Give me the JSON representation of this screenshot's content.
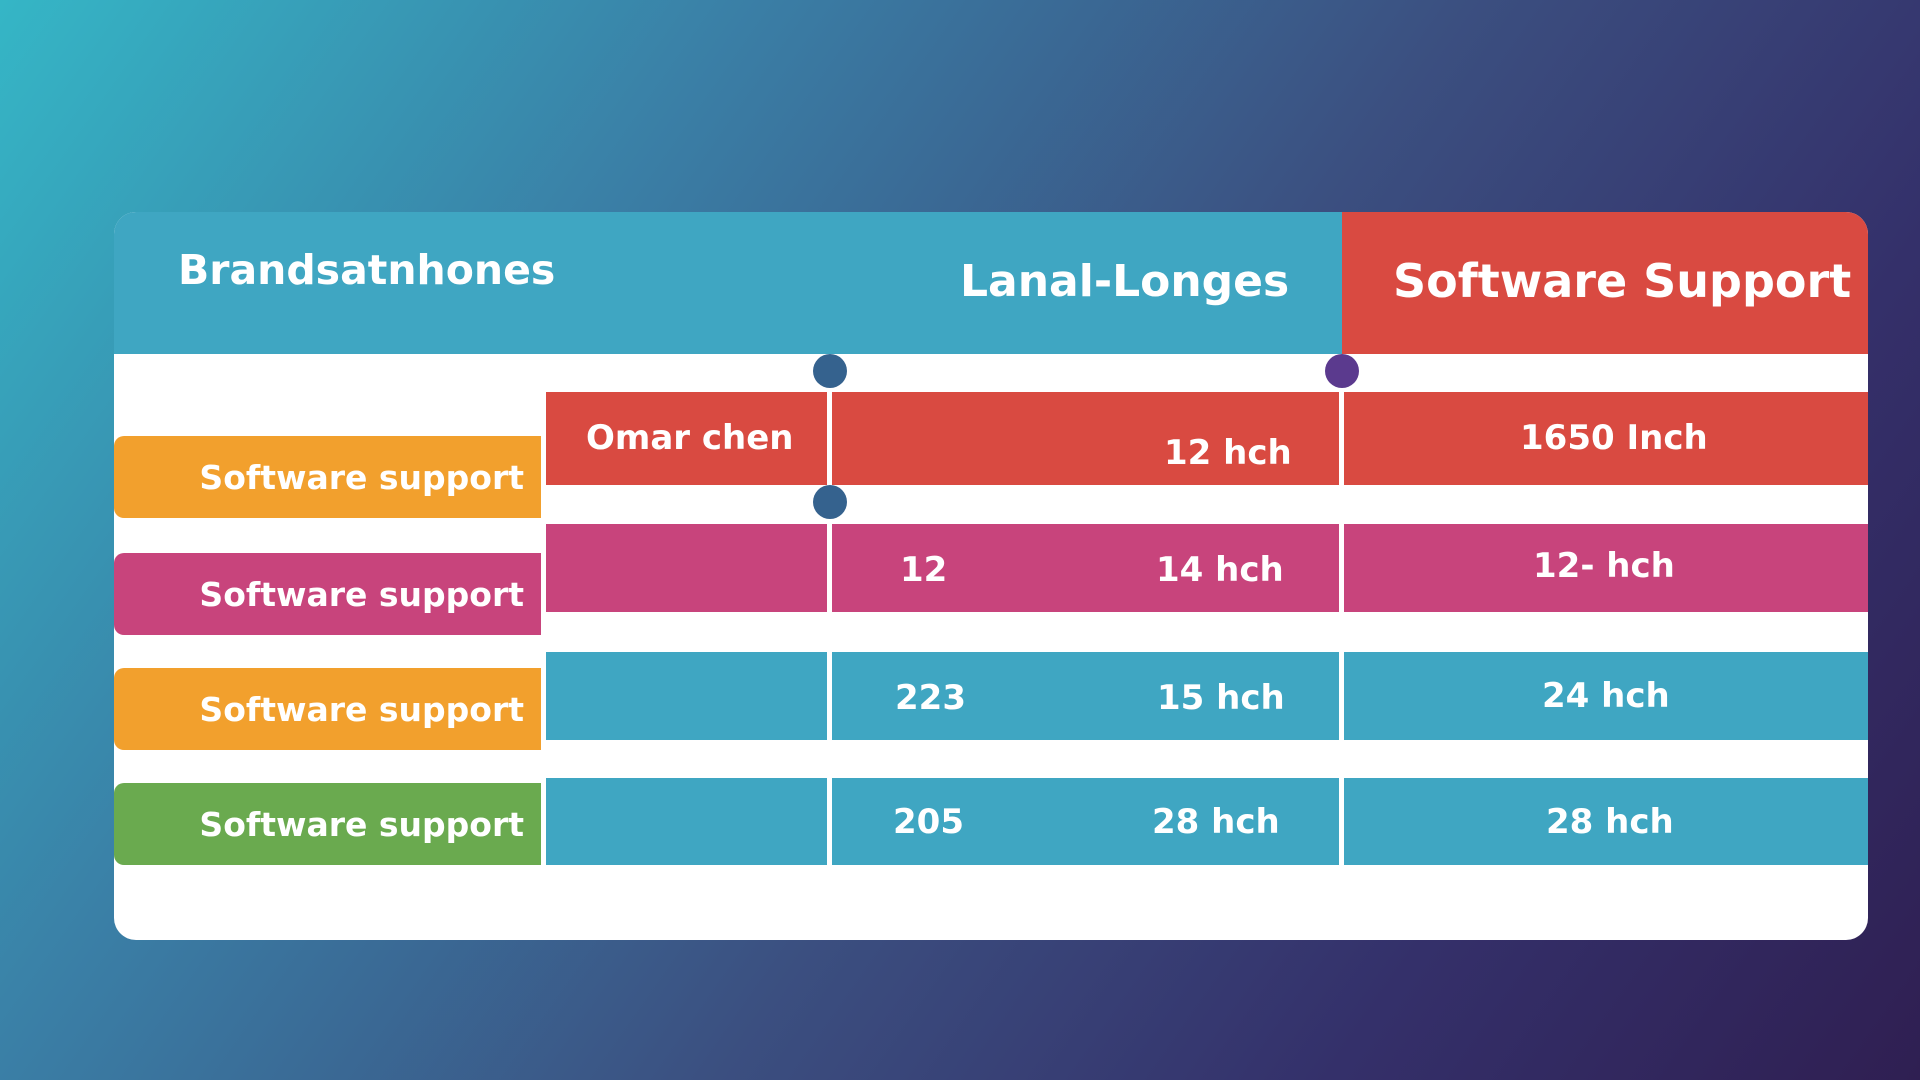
{
  "header": {
    "col1": "Brandsatnhones",
    "col2": "Lanal-Longes",
    "col3": "Software Support"
  },
  "row_labels": [
    "Software support",
    "Software support",
    "Software support",
    "Software support"
  ],
  "rows": [
    {
      "name": "Omar chen",
      "a": "",
      "b": "12 hch",
      "c": "1650 Inch"
    },
    {
      "name": "",
      "a": "12",
      "b": "14 hch",
      "c": "12- hch"
    },
    {
      "name": "",
      "a": "223",
      "b": "15 hch",
      "c": "24 hch"
    },
    {
      "name": "",
      "a": "205",
      "b": "28 hch",
      "c": "28 hch"
    }
  ],
  "colors": {
    "header_blue": "#3fa6c2",
    "header_red": "#d94a41",
    "row_red": "#d94a41",
    "row_pink": "#c8447c",
    "row_blue": "#3fa6c2",
    "label_orange": "#f2a02d",
    "label_pink": "#c8447c",
    "label_green": "#6aaa4f",
    "dot_blue": "#35628e",
    "dot_purple": "#5b3a8e"
  }
}
